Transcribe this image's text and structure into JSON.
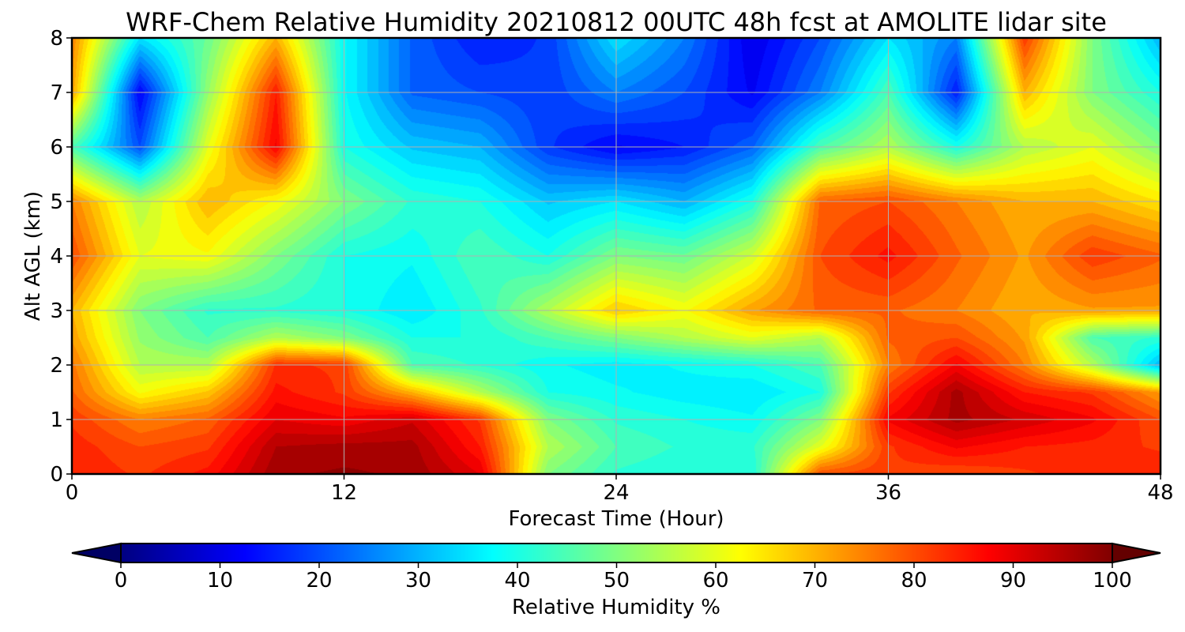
{
  "chart_data": {
    "type": "heatmap",
    "title": "WRF-Chem Relative Humidity 20210812 00UTC 48h fcst at AMOLITE lidar site",
    "xlabel": "Forecast Time (Hour)",
    "ylabel": "Alt AGL (km)",
    "xlim": [
      0,
      48
    ],
    "ylim": [
      0,
      8
    ],
    "x_ticks": [
      0,
      12,
      24,
      36,
      48
    ],
    "y_ticks": [
      0,
      1,
      2,
      3,
      4,
      5,
      6,
      7,
      8
    ],
    "grid": true,
    "colormap": "jet",
    "colorbar": {
      "label": "Relative Humidity %",
      "orientation": "horizontal",
      "extend": "both",
      "min": 0,
      "max": 100,
      "ticks": [
        0,
        10,
        20,
        30,
        40,
        50,
        60,
        70,
        80,
        90,
        100
      ]
    },
    "x_hours": [
      0,
      3,
      6,
      9,
      12,
      15,
      18,
      21,
      24,
      27,
      30,
      33,
      36,
      39,
      42,
      45,
      48
    ],
    "alt_km": [
      0,
      0.5,
      1,
      1.5,
      2,
      2.5,
      3,
      4,
      5,
      6,
      7,
      8
    ],
    "rh_percent": [
      [
        85,
        82,
        86,
        97,
        98,
        97,
        90,
        50,
        42,
        40,
        40,
        80,
        82,
        80,
        82,
        84,
        85
      ],
      [
        84,
        80,
        82,
        95,
        96,
        96,
        85,
        55,
        45,
        42,
        42,
        60,
        82,
        88,
        85,
        84,
        82
      ],
      [
        82,
        75,
        78,
        90,
        88,
        92,
        82,
        50,
        42,
        40,
        38,
        50,
        88,
        96,
        92,
        88,
        80
      ],
      [
        78,
        62,
        68,
        86,
        82,
        70,
        55,
        40,
        38,
        36,
        35,
        40,
        82,
        96,
        85,
        82,
        72
      ],
      [
        76,
        55,
        55,
        83,
        82,
        45,
        42,
        38,
        36,
        38,
        40,
        45,
        75,
        88,
        75,
        55,
        30
      ],
      [
        72,
        52,
        45,
        55,
        50,
        40,
        40,
        45,
        50,
        55,
        60,
        55,
        78,
        80,
        72,
        45,
        42
      ],
      [
        70,
        50,
        42,
        42,
        40,
        35,
        42,
        55,
        68,
        62,
        72,
        78,
        78,
        75,
        70,
        72,
        72
      ],
      [
        80,
        60,
        62,
        50,
        40,
        38,
        45,
        40,
        50,
        48,
        58,
        80,
        86,
        78,
        72,
        82,
        78
      ],
      [
        75,
        55,
        70,
        62,
        50,
        42,
        40,
        32,
        35,
        30,
        40,
        78,
        80,
        75,
        70,
        70,
        65
      ],
      [
        45,
        20,
        60,
        88,
        40,
        32,
        30,
        18,
        12,
        15,
        22,
        45,
        55,
        40,
        55,
        60,
        50
      ],
      [
        72,
        12,
        52,
        85,
        38,
        22,
        20,
        18,
        25,
        20,
        12,
        25,
        45,
        15,
        70,
        50,
        40
      ],
      [
        75,
        35,
        48,
        70,
        38,
        22,
        15,
        18,
        35,
        25,
        10,
        20,
        35,
        25,
        82,
        50,
        30
      ]
    ]
  }
}
